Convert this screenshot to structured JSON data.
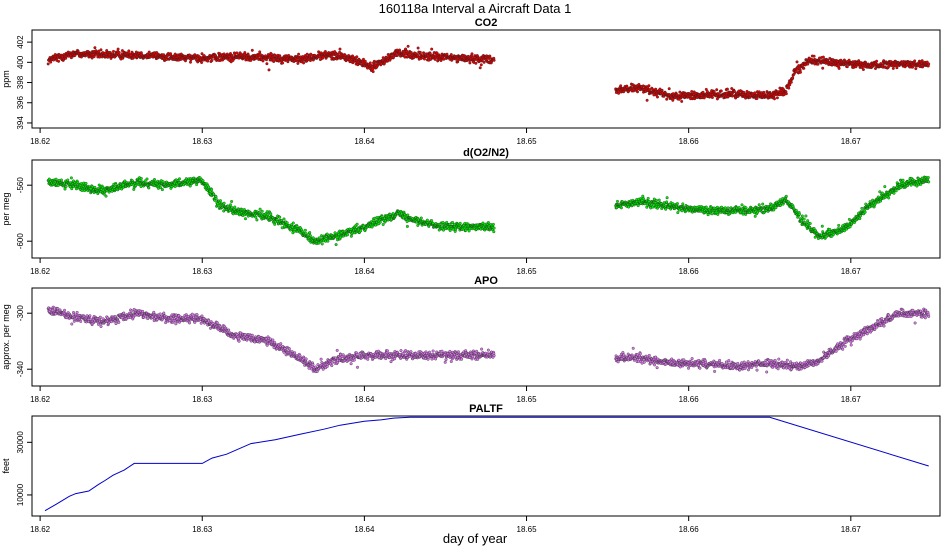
{
  "figure": {
    "title": "160118a   Interval a Aircraft Data 1",
    "xlabel": "day of year"
  },
  "chart_data": [
    {
      "type": "scatter",
      "title": "CO2",
      "ylabel": "ppm",
      "color": "#ee0000",
      "xlim": [
        18.6195,
        18.6755
      ],
      "ylim": [
        393.5,
        403.2
      ],
      "xticks": [
        18.62,
        18.63,
        18.64,
        18.65,
        18.66,
        18.67
      ],
      "yticks": [
        394,
        396,
        398,
        400,
        402
      ],
      "segments": [
        {
          "x": [
            18.6205,
            18.622,
            18.624,
            18.626,
            18.628,
            18.63,
            18.632,
            18.634,
            18.636,
            18.638,
            18.6395,
            18.6405,
            18.642,
            18.644,
            18.646,
            18.648
          ],
          "y": [
            400.2,
            400.9,
            400.7,
            400.8,
            400.5,
            400.4,
            400.6,
            400.5,
            400.3,
            400.8,
            400.2,
            399.5,
            400.9,
            400.6,
            400.4,
            400.3
          ]
        },
        {
          "x": [
            18.6555,
            18.657,
            18.659,
            18.661,
            18.663,
            18.665,
            18.666,
            18.6665,
            18.6675,
            18.669,
            18.671,
            18.673,
            18.6748
          ],
          "y": [
            397.3,
            397.5,
            396.6,
            396.8,
            396.9,
            396.7,
            397.2,
            399.0,
            400.2,
            400.0,
            399.7,
            399.8,
            399.9
          ]
        }
      ]
    },
    {
      "type": "scatter",
      "title": "d(O2/N2)",
      "ylabel": "per meg",
      "color": "#00ee00",
      "xlim": [
        18.6195,
        18.6755
      ],
      "ylim": [
        -612,
        -542
      ],
      "xticks": [
        18.62,
        18.63,
        18.64,
        18.65,
        18.66,
        18.67
      ],
      "yticks": [
        -600,
        -560
      ],
      "segments": [
        {
          "x": [
            18.6205,
            18.622,
            18.624,
            18.626,
            18.628,
            18.63,
            18.631,
            18.6325,
            18.634,
            18.636,
            18.637,
            18.639,
            18.641,
            18.642,
            18.644,
            18.646,
            18.648
          ],
          "y": [
            -558,
            -560,
            -564,
            -558,
            -560,
            -556,
            -574,
            -580,
            -582,
            -592,
            -600,
            -594,
            -585,
            -580,
            -588,
            -590,
            -590
          ]
        },
        {
          "x": [
            18.6555,
            18.657,
            18.659,
            18.661,
            18.663,
            18.665,
            18.666,
            18.667,
            18.668,
            18.669,
            18.67,
            18.671,
            18.673,
            18.6748
          ],
          "y": [
            -575,
            -572,
            -575,
            -578,
            -578,
            -577,
            -570,
            -585,
            -596,
            -594,
            -588,
            -576,
            -560,
            -556
          ]
        }
      ]
    },
    {
      "type": "scatter",
      "title": "APO",
      "ylabel": "approx. per meg",
      "color": "#dd77ee",
      "xlim": [
        18.6195,
        18.6755
      ],
      "ylim": [
        -352,
        -282
      ],
      "xticks": [
        18.62,
        18.63,
        18.64,
        18.65,
        18.66,
        18.67
      ],
      "yticks": [
        -340,
        -300
      ],
      "segments": [
        {
          "x": [
            18.6205,
            18.622,
            18.624,
            18.626,
            18.628,
            18.63,
            18.632,
            18.634,
            18.636,
            18.637,
            18.638,
            18.64,
            18.642,
            18.644,
            18.646,
            18.648
          ],
          "y": [
            -298,
            -302,
            -306,
            -300,
            -304,
            -304,
            -316,
            -320,
            -332,
            -340,
            -334,
            -330,
            -330,
            -330,
            -330,
            -330
          ]
        },
        {
          "x": [
            18.6555,
            18.657,
            18.659,
            18.661,
            18.663,
            18.665,
            18.667,
            18.668,
            18.669,
            18.67,
            18.671,
            18.672,
            18.673,
            18.6748
          ],
          "y": [
            -332,
            -332,
            -336,
            -336,
            -338,
            -336,
            -338,
            -334,
            -326,
            -318,
            -312,
            -306,
            -300,
            -300
          ]
        }
      ]
    },
    {
      "type": "line",
      "title": "PALTF",
      "ylabel": "feet",
      "color": "#0000cc",
      "xlim": [
        18.6195,
        18.6755
      ],
      "ylim": [
        2000,
        40000
      ],
      "xticks": [
        18.62,
        18.63,
        18.64,
        18.65,
        18.66,
        18.67
      ],
      "yticks": [
        10000,
        30000
      ],
      "x": [
        18.6203,
        18.621,
        18.6218,
        18.6222,
        18.623,
        18.6236,
        18.624,
        18.6245,
        18.6252,
        18.6258,
        18.63,
        18.6306,
        18.6315,
        18.633,
        18.6345,
        18.636,
        18.6375,
        18.6385,
        18.64,
        18.641,
        18.6418,
        18.6428,
        18.65,
        18.66,
        18.665,
        18.6748
      ],
      "y": [
        4000,
        6500,
        9500,
        10500,
        11500,
        14000,
        15500,
        17500,
        19500,
        22000,
        22000,
        24000,
        25500,
        29500,
        31000,
        33000,
        35000,
        36500,
        38000,
        38500,
        39200,
        39500,
        39500,
        39500,
        39500,
        21000
      ]
    }
  ]
}
